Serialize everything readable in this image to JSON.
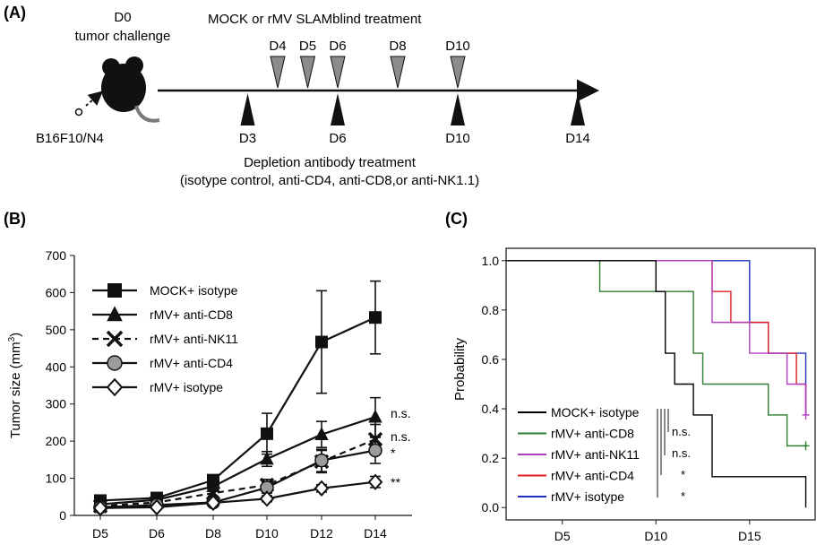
{
  "panel_a": {
    "label": "(A)",
    "d0_title": "D0",
    "d0_subtitle": "tumor challenge",
    "cell_line": "B16F10/N4",
    "treatment_top": "MOCK or rMV SLAMblind treatment",
    "top_days": [
      "D4",
      "D5",
      "D6",
      "D8",
      "D10"
    ],
    "bottom_days": [
      "D3",
      "D6",
      "D10",
      "D14"
    ],
    "treatment_bottom_line1": "Depletion antibody treatment",
    "treatment_bottom_line2": "(isotype control, anti-CD4, anti-CD8,or anti-NK1.1)",
    "colors": {
      "top_marker": "#8c8c8c",
      "bottom_marker": "#111111"
    }
  },
  "panel_b": {
    "label": "(B)",
    "legend": [
      "MOCK+ isotype",
      "rMV+ anti-CD8",
      "rMV+ anti-NK11",
      "rMV+ anti-CD4",
      "rMV+ isotype"
    ],
    "significance": [
      "n.s.",
      "n.s.",
      "*",
      "**"
    ]
  },
  "panel_c": {
    "label": "(C)",
    "legend": [
      "MOCK+ isotype",
      "rMV+ anti-CD8",
      "rMV+ anti-NK11",
      "rMV+ anti-CD4",
      "rMV+ isotype"
    ],
    "significance": [
      "n.s.",
      "n.s.",
      "*",
      "*"
    ]
  },
  "chart_data": [
    {
      "type": "line",
      "ylabel": "Tumor size (mm3)",
      "ylabel_base": "Tumor size (mm",
      "ylabel_sup": "3",
      "ylabel_close": ")",
      "categories": [
        "D5",
        "D6",
        "D8",
        "D10",
        "D12",
        "D14"
      ],
      "ylim": [
        0,
        700
      ],
      "yticks": [
        0,
        100,
        200,
        300,
        400,
        500,
        600,
        700
      ],
      "grid": false,
      "legend_position": "top-left",
      "series": [
        {
          "name": "MOCK+ isotype",
          "marker": "square",
          "dash": false,
          "values": [
            40,
            47,
            95,
            220,
            467,
            533
          ],
          "errors": [
            5,
            6,
            12,
            55,
            138,
            98
          ]
        },
        {
          "name": "rMV+ anti-CD8",
          "marker": "triangle",
          "dash": false,
          "values": [
            30,
            42,
            78,
            152,
            218,
            265
          ],
          "errors": [
            4,
            5,
            10,
            20,
            35,
            52
          ]
        },
        {
          "name": "rMV+ anti-NK11",
          "marker": "cross",
          "dash": true,
          "values": [
            25,
            35,
            60,
            82,
            145,
            205
          ],
          "errors": [
            4,
            5,
            8,
            15,
            30,
            40
          ]
        },
        {
          "name": "rMV+ anti-CD4",
          "marker": "circle",
          "dash": false,
          "values": [
            22,
            28,
            35,
            75,
            148,
            175
          ],
          "errors": [
            3,
            4,
            6,
            15,
            30,
            35
          ]
        },
        {
          "name": "rMV+ isotype",
          "marker": "diamond",
          "dash": false,
          "values": [
            20,
            22,
            34,
            45,
            73,
            90
          ],
          "errors": [
            3,
            3,
            5,
            8,
            10,
            15
          ]
        }
      ]
    },
    {
      "type": "line",
      "ylabel": "Probability",
      "xticks": [
        "D5",
        "D10",
        "D15"
      ],
      "xtick_values": [
        5,
        10,
        15
      ],
      "xlim": [
        2,
        18.5
      ],
      "ylim": [
        -0.05,
        1.05
      ],
      "yticks": [
        "0.0",
        "0.2",
        "0.4",
        "0.6",
        "0.8",
        "1.0"
      ],
      "ytick_values": [
        0,
        0.2,
        0.4,
        0.6,
        0.8,
        1.0
      ],
      "grid": false,
      "legend_position": "bottom-left",
      "series": [
        {
          "name": "MOCK+ isotype",
          "color": "#000000",
          "steps": [
            [
              2,
              1.0
            ],
            [
              10,
              0.875
            ],
            [
              10.5,
              0.625
            ],
            [
              11,
              0.5
            ],
            [
              12,
              0.375
            ],
            [
              13,
              0.125
            ],
            [
              18,
              0.0
            ]
          ]
        },
        {
          "name": "rMV+ anti-CD8",
          "color": "#2e7d32",
          "steps": [
            [
              2,
              1.0
            ],
            [
              7,
              0.875
            ],
            [
              12,
              0.625
            ],
            [
              12.5,
              0.5
            ],
            [
              16,
              0.375
            ],
            [
              17,
              0.25
            ],
            [
              18,
              0.25
            ]
          ],
          "censored": [
            [
              18,
              0.25
            ]
          ]
        },
        {
          "name": "rMV+ anti-NK11",
          "color": "#b040c0",
          "steps": [
            [
              2,
              1.0
            ],
            [
              13,
              0.75
            ],
            [
              15,
              0.625
            ],
            [
              17,
              0.5
            ],
            [
              18,
              0.375
            ]
          ],
          "censored": [
            [
              18,
              0.375
            ]
          ]
        },
        {
          "name": "rMV+ anti-CD4",
          "color": "#e02020",
          "steps": [
            [
              2,
              1.0
            ],
            [
              13,
              0.875
            ],
            [
              14,
              0.75
            ],
            [
              16,
              0.625
            ],
            [
              17.5,
              0.5
            ],
            [
              18,
              0.375
            ]
          ]
        },
        {
          "name": "rMV+ isotype",
          "color": "#2030c0",
          "steps": [
            [
              2,
              1.0
            ],
            [
              15,
              0.75
            ],
            [
              16,
              0.625
            ],
            [
              18,
              0.375
            ]
          ]
        }
      ]
    }
  ]
}
